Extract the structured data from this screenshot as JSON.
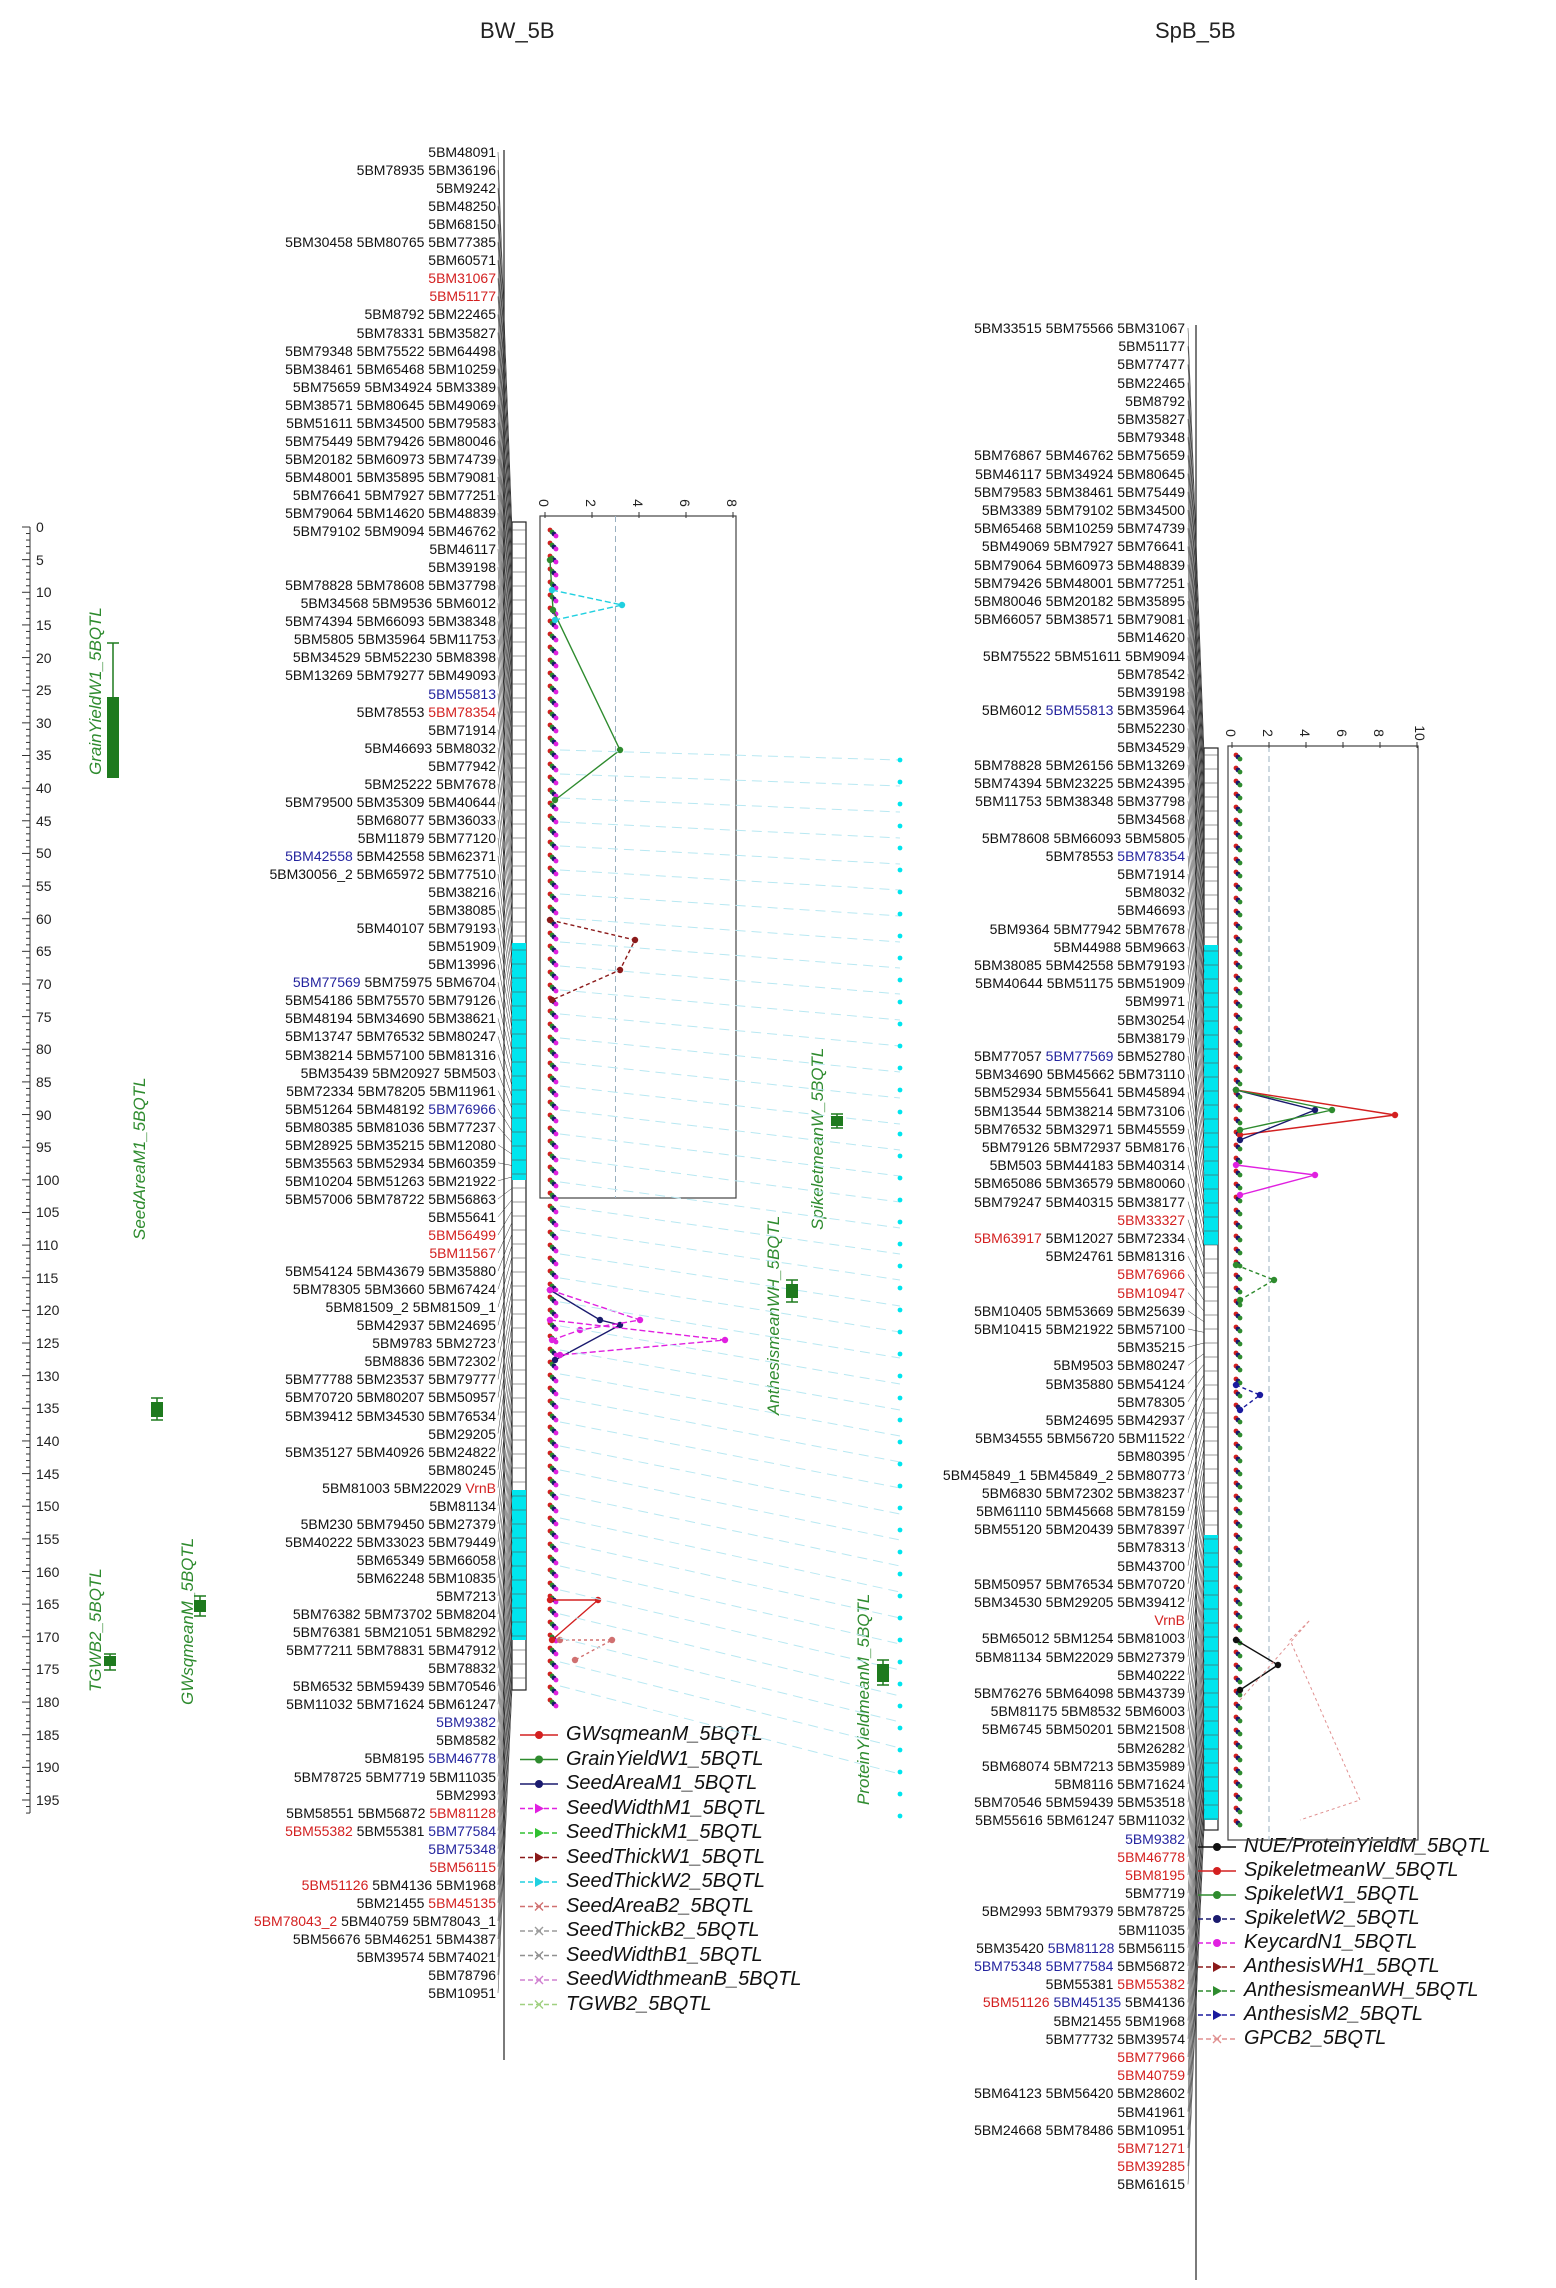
{
  "panels": [
    {
      "title": "BW_5B",
      "cm_ticks": [
        "0",
        "5",
        "10",
        "15",
        "20",
        "25",
        "30",
        "35",
        "40",
        "45",
        "50",
        "55",
        "60",
        "65",
        "70",
        "75",
        "80",
        "85",
        "90",
        "95",
        "100",
        "105",
        "110",
        "115",
        "120",
        "125",
        "130",
        "135",
        "140",
        "145",
        "150",
        "155",
        "160",
        "165",
        "170",
        "175",
        "180",
        "185",
        "190",
        "195"
      ],
      "lod_ticks": [
        "0",
        "2",
        "4",
        "6",
        "8"
      ],
      "qtl_labels": [
        "GrainYieldW1_5BQTL",
        "SeedAreaM1_5BQTL",
        "GWsqmeanM_5BQTL",
        "TGWB2_5BQTL"
      ],
      "legend": [
        "GWsqmeanM_5BQTL",
        "GrainYieldW1_5BQTL",
        "SeedAreaM1_5BQTL",
        "SeedWidthM1_5BQTL",
        "SeedThickM1_5BQTL",
        "SeedThickW1_5BQTL",
        "SeedThickW2_5BQTL",
        "SeedAreaB2_5BQTL",
        "SeedThickB2_5BQTL",
        "SeedWidthB1_5BQTL",
        "SeedWidthmeanB_5BQTL",
        "TGWB2_5BQTL"
      ]
    },
    {
      "title": "SpB_5B",
      "lod_ticks": [
        "0",
        "2",
        "4",
        "6",
        "8",
        "10"
      ],
      "qtl_labels": [
        "SpikeletmeanW_5BQTL",
        "AnthesismeanWH_5BQTL",
        "ProteinYieldmeanM_5BQTL"
      ],
      "legend": [
        "NUE/ProteinYieldM_5BQTL",
        "SpikeletmeanW_5BQTL",
        "SpikeletW1_5BQTL",
        "SpikeletW2_5BQTL",
        "KeycardN1_5BQTL",
        "AnthesisWH1_5BQTL",
        "AnthesismeanWH_5BQTL",
        "AnthesisM2_5BQTL",
        "GPCB2_5BQTL"
      ]
    }
  ],
  "colors": {
    "legend": [
      "#d32020",
      "#2e8b2e",
      "#1a1a6e",
      "#e020e0",
      "#30c030",
      "#8b1a1a",
      "#20d0e0",
      "#d07070",
      "#9a9a9a",
      "#909090",
      "#d080d0",
      "#a0d080"
    ],
    "legend2": [
      "#111111",
      "#d32020",
      "#2e8b2e",
      "#1a1a6e",
      "#e020e0",
      "#8b1a1a",
      "#2e8b2e",
      "#1a1a9e",
      "#e09090"
    ],
    "red": "#d32020",
    "blue": "#24249e",
    "cyan": "#00e5ee",
    "qtl": "#1e7a1e"
  },
  "bw_markers": [
    [
      {
        "t": "5BM48091"
      }
    ],
    [
      {
        "t": "5BM78935 5BM36196"
      }
    ],
    [
      {
        "t": "5BM9242"
      }
    ],
    [
      {
        "t": "5BM48250"
      }
    ],
    [
      {
        "t": "5BM68150"
      }
    ],
    [
      {
        "t": "5BM30458 5BM80765 5BM77385"
      }
    ],
    [
      {
        "t": "5BM60571"
      }
    ],
    [
      {
        "t": "5BM31067",
        "c": "r"
      }
    ],
    [
      {
        "t": "5BM51177",
        "c": "r"
      }
    ],
    [
      {
        "t": "5BM8792 5BM22465"
      }
    ],
    [
      {
        "t": "5BM78331 5BM35827"
      }
    ],
    [
      {
        "t": "5BM79348 5BM75522 5BM64498"
      }
    ],
    [
      {
        "t": "5BM38461 5BM65468 5BM10259"
      }
    ],
    [
      {
        "t": "5BM75659 5BM34924 5BM3389"
      }
    ],
    [
      {
        "t": "5BM38571 5BM80645 5BM49069"
      }
    ],
    [
      {
        "t": "5BM51611 5BM34500 5BM79583"
      }
    ],
    [
      {
        "t": "5BM75449 5BM79426 5BM80046"
      }
    ],
    [
      {
        "t": "5BM20182 5BM60973 5BM74739"
      }
    ],
    [
      {
        "t": "5BM48001 5BM35895 5BM79081"
      }
    ],
    [
      {
        "t": "5BM76641 5BM7927 5BM77251"
      }
    ],
    [
      {
        "t": "5BM79064 5BM14620 5BM48839"
      }
    ],
    [
      {
        "t": "5BM79102 5BM9094 5BM46762"
      }
    ],
    [
      {
        "t": "5BM46117"
      }
    ],
    [
      {
        "t": "5BM39198"
      }
    ],
    [
      {
        "t": "5BM78828 5BM78608 5BM37798"
      }
    ],
    [
      {
        "t": "5BM34568 5BM9536 5BM6012"
      }
    ],
    [
      {
        "t": "5BM74394 5BM66093 5BM38348"
      }
    ],
    [
      {
        "t": "5BM5805 5BM35964 5BM11753"
      }
    ],
    [
      {
        "t": "5BM34529 5BM52230 5BM8398"
      }
    ],
    [
      {
        "t": "5BM13269 5BM79277 5BM49093"
      }
    ],
    [
      {
        "t": "5BM55813",
        "c": "b"
      }
    ],
    [
      {
        "t": "5BM78553 "
      },
      {
        "t": "5BM78354",
        "c": "r"
      }
    ],
    [
      {
        "t": "5BM71914"
      }
    ],
    [
      {
        "t": "5BM46693 5BM8032"
      }
    ],
    [
      {
        "t": "5BM77942"
      }
    ],
    [
      {
        "t": "5BM25222 5BM7678"
      }
    ],
    [
      {
        "t": "5BM79500 5BM35309 5BM40644"
      }
    ],
    [
      {
        "t": "5BM68077 5BM36033"
      }
    ],
    [
      {
        "t": "5BM11879 5BM77120"
      }
    ],
    [
      {
        "t": "5BM42558",
        "c": "b"
      },
      {
        "t": " 5BM42558 5BM62371"
      }
    ],
    [
      {
        "t": "5BM30056_2 5BM65972 5BM77510"
      }
    ],
    [
      {
        "t": "5BM38216"
      }
    ],
    [
      {
        "t": "5BM38085"
      }
    ],
    [
      {
        "t": "5BM40107 5BM79193"
      }
    ],
    [
      {
        "t": "5BM51909"
      }
    ],
    [
      {
        "t": "5BM13996"
      }
    ],
    [
      {
        "t": "5BM77569",
        "c": "b"
      },
      {
        "t": " 5BM75975 5BM6704"
      }
    ],
    [
      {
        "t": "5BM54186 5BM75570 5BM79126"
      }
    ],
    [
      {
        "t": "5BM48194 5BM34690 5BM38621"
      }
    ],
    [
      {
        "t": "5BM13747 5BM76532 5BM80247"
      }
    ],
    [
      {
        "t": "5BM38214 5BM57100 5BM81316"
      }
    ],
    [
      {
        "t": "5BM35439 5BM20927 5BM503"
      }
    ],
    [
      {
        "t": "5BM72334 5BM78205 5BM11961"
      }
    ],
    [
      {
        "t": "5BM51264 5BM48192 "
      },
      {
        "t": "5BM76966",
        "c": "b"
      }
    ],
    [
      {
        "t": "5BM80385 5BM81036 5BM77237"
      }
    ],
    [
      {
        "t": "5BM28925 5BM35215 5BM12080"
      }
    ],
    [
      {
        "t": "5BM35563 5BM52934 5BM60359"
      }
    ],
    [
      {
        "t": "5BM10204 5BM51263 5BM21922"
      }
    ],
    [
      {
        "t": "5BM57006 5BM78722 5BM56863"
      }
    ],
    [
      {
        "t": "5BM55641"
      }
    ],
    [
      {
        "t": "5BM56499",
        "c": "r"
      }
    ],
    [
      {
        "t": "5BM11567",
        "c": "r"
      }
    ],
    [
      {
        "t": "5BM54124 5BM43679 5BM35880"
      }
    ],
    [
      {
        "t": "5BM78305 5BM3660 5BM67424"
      }
    ],
    [
      {
        "t": "5BM81509_2 5BM81509_1"
      }
    ],
    [
      {
        "t": "5BM42937 5BM24695"
      }
    ],
    [
      {
        "t": "5BM9783 5BM2723"
      }
    ],
    [
      {
        "t": "5BM8836 5BM72302"
      }
    ],
    [
      {
        "t": "5BM77788 5BM23537 5BM79777"
      }
    ],
    [
      {
        "t": "5BM70720 5BM80207 5BM50957"
      }
    ],
    [
      {
        "t": "5BM39412 5BM34530 5BM76534"
      }
    ],
    [
      {
        "t": "5BM29205"
      }
    ],
    [
      {
        "t": "5BM35127 5BM40926 5BM24822"
      }
    ],
    [
      {
        "t": "5BM80245"
      }
    ],
    [
      {
        "t": "5BM81003 5BM22029 "
      },
      {
        "t": "VrnB",
        "c": "r"
      }
    ],
    [
      {
        "t": "5BM81134"
      }
    ],
    [
      {
        "t": "5BM230 5BM79450 5BM27379"
      }
    ],
    [
      {
        "t": "5BM40222 5BM33023 5BM79449"
      }
    ],
    [
      {
        "t": "5BM65349 5BM66058"
      }
    ],
    [
      {
        "t": "5BM62248 5BM10835"
      }
    ],
    [
      {
        "t": "5BM7213"
      }
    ],
    [
      {
        "t": "5BM76382 5BM73702 5BM8204"
      }
    ],
    [
      {
        "t": "5BM76381 5BM21051 5BM8292"
      }
    ],
    [
      {
        "t": "5BM77211 5BM78831 5BM47912"
      }
    ],
    [
      {
        "t": "5BM78832"
      }
    ],
    [
      {
        "t": "5BM6532 5BM59439 5BM70546"
      }
    ],
    [
      {
        "t": "5BM11032 5BM71624 5BM61247"
      }
    ],
    [
      {
        "t": "5BM9382",
        "c": "b"
      }
    ],
    [
      {
        "t": "5BM8582"
      }
    ],
    [
      {
        "t": "5BM8195 "
      },
      {
        "t": "5BM46778",
        "c": "b"
      }
    ],
    [
      {
        "t": "5BM78725 5BM7719 5BM11035"
      }
    ],
    [
      {
        "t": "5BM2993"
      }
    ],
    [
      {
        "t": "5BM58551 5BM56872 "
      },
      {
        "t": "5BM81128",
        "c": "r"
      }
    ],
    [
      {
        "t": "5BM55382",
        "c": "r"
      },
      {
        "t": " 5BM55381 "
      },
      {
        "t": "5BM77584",
        "c": "b"
      }
    ],
    [
      {
        "t": "5BM75348",
        "c": "b"
      }
    ],
    [
      {
        "t": "5BM56115",
        "c": "r"
      }
    ],
    [
      {
        "t": "5BM51126",
        "c": "r"
      },
      {
        "t": " 5BM4136 5BM1968"
      }
    ],
    [
      {
        "t": "5BM21455 "
      },
      {
        "t": "5BM45135",
        "c": "r"
      }
    ],
    [
      {
        "t": "5BM78043_2",
        "c": "r"
      },
      {
        "t": " 5BM40759 5BM78043_1"
      }
    ],
    [
      {
        "t": "5BM56676 5BM46251 5BM4387"
      }
    ],
    [
      {
        "t": "5BM39574 5BM74021"
      }
    ],
    [
      {
        "t": "5BM78796"
      }
    ],
    [
      {
        "t": "5BM10951"
      }
    ]
  ],
  "spb_markers": [
    [
      {
        "t": "5BM33515 5BM75566 5BM31067"
      }
    ],
    [
      {
        "t": "5BM51177"
      }
    ],
    [
      {
        "t": "5BM77477"
      }
    ],
    [
      {
        "t": "5BM22465"
      }
    ],
    [
      {
        "t": "5BM8792"
      }
    ],
    [
      {
        "t": "5BM35827"
      }
    ],
    [
      {
        "t": "5BM79348"
      }
    ],
    [
      {
        "t": "5BM76867 5BM46762 5BM75659"
      }
    ],
    [
      {
        "t": "5BM46117 5BM34924 5BM80645"
      }
    ],
    [
      {
        "t": "5BM79583 5BM38461 5BM75449"
      }
    ],
    [
      {
        "t": "5BM3389 5BM79102 5BM34500"
      }
    ],
    [
      {
        "t": "5BM65468 5BM10259 5BM74739"
      }
    ],
    [
      {
        "t": "5BM49069 5BM7927 5BM76641"
      }
    ],
    [
      {
        "t": "5BM79064 5BM60973 5BM48839"
      }
    ],
    [
      {
        "t": "5BM79426 5BM48001 5BM77251"
      }
    ],
    [
      {
        "t": "5BM80046 5BM20182 5BM35895"
      }
    ],
    [
      {
        "t": "5BM66057 5BM38571 5BM79081"
      }
    ],
    [
      {
        "t": "5BM14620"
      }
    ],
    [
      {
        "t": "5BM75522 5BM51611 5BM9094"
      }
    ],
    [
      {
        "t": "5BM78542"
      }
    ],
    [
      {
        "t": "5BM39198"
      }
    ],
    [
      {
        "t": "5BM6012 "
      },
      {
        "t": "5BM55813",
        "c": "b"
      },
      {
        "t": " 5BM35964"
      }
    ],
    [
      {
        "t": "5BM52230"
      }
    ],
    [
      {
        "t": "5BM34529"
      }
    ],
    [
      {
        "t": "5BM78828 5BM26156 5BM13269"
      }
    ],
    [
      {
        "t": "5BM74394 5BM23225 5BM24395"
      }
    ],
    [
      {
        "t": "5BM11753 5BM38348 5BM37798"
      }
    ],
    [
      {
        "t": "5BM34568"
      }
    ],
    [
      {
        "t": "5BM78608 5BM66093 5BM5805"
      }
    ],
    [
      {
        "t": "5BM78553 "
      },
      {
        "t": "5BM78354",
        "c": "b"
      }
    ],
    [
      {
        "t": "5BM71914"
      }
    ],
    [
      {
        "t": "5BM8032"
      }
    ],
    [
      {
        "t": "5BM46693"
      }
    ],
    [
      {
        "t": "5BM9364 5BM77942 5BM7678"
      }
    ],
    [
      {
        "t": "5BM44988 5BM9663"
      }
    ],
    [
      {
        "t": "5BM38085 5BM42558 5BM79193"
      }
    ],
    [
      {
        "t": "5BM40644 5BM51175 5BM51909"
      }
    ],
    [
      {
        "t": "5BM9971"
      }
    ],
    [
      {
        "t": "5BM30254"
      }
    ],
    [
      {
        "t": "5BM38179"
      }
    ],
    [
      {
        "t": "5BM77057 "
      },
      {
        "t": "5BM77569",
        "c": "b"
      },
      {
        "t": " 5BM52780"
      }
    ],
    [
      {
        "t": "5BM34690 5BM45662 5BM73110"
      }
    ],
    [
      {
        "t": "5BM52934 5BM55641 5BM45894"
      }
    ],
    [
      {
        "t": "5BM13544 5BM38214 5BM73106"
      }
    ],
    [
      {
        "t": "5BM76532 5BM32971 5BM45559"
      }
    ],
    [
      {
        "t": "5BM79126 5BM72937 5BM8176"
      }
    ],
    [
      {
        "t": "5BM503 5BM44183 5BM40314"
      }
    ],
    [
      {
        "t": "5BM65086 5BM36579 5BM80060"
      }
    ],
    [
      {
        "t": "5BM79247 5BM40315 5BM38177"
      }
    ],
    [
      {
        "t": "5BM33327",
        "c": "r"
      }
    ],
    [
      {
        "t": "5BM63917",
        "c": "r"
      },
      {
        "t": " 5BM12027 5BM72334"
      }
    ],
    [
      {
        "t": "5BM24761 5BM81316"
      }
    ],
    [
      {
        "t": "5BM76966",
        "c": "r"
      }
    ],
    [
      {
        "t": "5BM10947",
        "c": "r"
      }
    ],
    [
      {
        "t": "5BM10405 5BM53669 5BM25639"
      }
    ],
    [
      {
        "t": "5BM10415 5BM21922 5BM57100"
      }
    ],
    [
      {
        "t": "5BM35215"
      }
    ],
    [
      {
        "t": "5BM9503 5BM80247"
      }
    ],
    [
      {
        "t": "5BM35880 5BM54124"
      }
    ],
    [
      {
        "t": "5BM78305"
      }
    ],
    [
      {
        "t": "5BM24695 5BM42937"
      }
    ],
    [
      {
        "t": "5BM34555 5BM56720 5BM11522"
      }
    ],
    [
      {
        "t": "5BM80395"
      }
    ],
    [
      {
        "t": "5BM45849_1 5BM45849_2 5BM80773"
      }
    ],
    [
      {
        "t": "5BM6830 5BM72302 5BM38237"
      }
    ],
    [
      {
        "t": "5BM61110 5BM45668 5BM78159"
      }
    ],
    [
      {
        "t": "5BM55120 5BM20439 5BM78397"
      }
    ],
    [
      {
        "t": "5BM78313"
      }
    ],
    [
      {
        "t": "5BM43700"
      }
    ],
    [
      {
        "t": "5BM50957 5BM76534 5BM70720"
      }
    ],
    [
      {
        "t": "5BM34530 5BM29205 5BM39412"
      }
    ],
    [
      {
        "t": "VrnB",
        "c": "r"
      }
    ],
    [
      {
        "t": "5BM65012 5BM1254 5BM81003"
      }
    ],
    [
      {
        "t": "5BM81134 5BM22029 5BM27379"
      }
    ],
    [
      {
        "t": "5BM40222"
      }
    ],
    [
      {
        "t": "5BM76276 5BM64098 5BM43739"
      }
    ],
    [
      {
        "t": "5BM81175 5BM8532 5BM6003"
      }
    ],
    [
      {
        "t": "5BM6745 5BM50201 5BM21508"
      }
    ],
    [
      {
        "t": "5BM26282"
      }
    ],
    [
      {
        "t": "5BM68074 5BM7213 5BM35989"
      }
    ],
    [
      {
        "t": "5BM8116 5BM71624"
      }
    ],
    [
      {
        "t": "5BM70546 5BM59439 5BM53518"
      }
    ],
    [
      {
        "t": "5BM55616 5BM61247 5BM11032"
      }
    ],
    [
      {
        "t": "5BM9382",
        "c": "b"
      }
    ],
    [
      {
        "t": "5BM46778",
        "c": "r"
      }
    ],
    [
      {
        "t": "5BM8195",
        "c": "r"
      }
    ],
    [
      {
        "t": "5BM7719"
      }
    ],
    [
      {
        "t": "5BM2993 5BM79379 5BM78725"
      }
    ],
    [
      {
        "t": "5BM11035"
      }
    ],
    [
      {
        "t": "5BM35420 "
      },
      {
        "t": "5BM81128",
        "c": "b"
      },
      {
        "t": " 5BM56115"
      }
    ],
    [
      {
        "t": "5BM75348 5BM77584",
        "c": "b"
      },
      {
        "t": " 5BM56872"
      }
    ],
    [
      {
        "t": "5BM55381 "
      },
      {
        "t": "5BM55382",
        "c": "r"
      }
    ],
    [
      {
        "t": "5BM51126",
        "c": "r"
      },
      {
        "t": " "
      },
      {
        "t": "5BM45135",
        "c": "b"
      },
      {
        "t": " 5BM4136"
      }
    ],
    [
      {
        "t": "5BM21455 5BM1968"
      }
    ],
    [
      {
        "t": "5BM77732 5BM39574"
      }
    ],
    [
      {
        "t": "5BM77966",
        "c": "r"
      }
    ],
    [
      {
        "t": "5BM40759",
        "c": "r"
      }
    ],
    [
      {
        "t": "5BM64123 5BM56420 5BM28602"
      }
    ],
    [
      {
        "t": "5BM41961"
      }
    ],
    [
      {
        "t": "5BM24668 5BM78486 5BM10951"
      }
    ],
    [
      {
        "t": "5BM71271",
        "c": "r"
      }
    ],
    [
      {
        "t": "5BM39285",
        "c": "r"
      }
    ],
    [
      {
        "t": "5BM61615"
      }
    ]
  ]
}
